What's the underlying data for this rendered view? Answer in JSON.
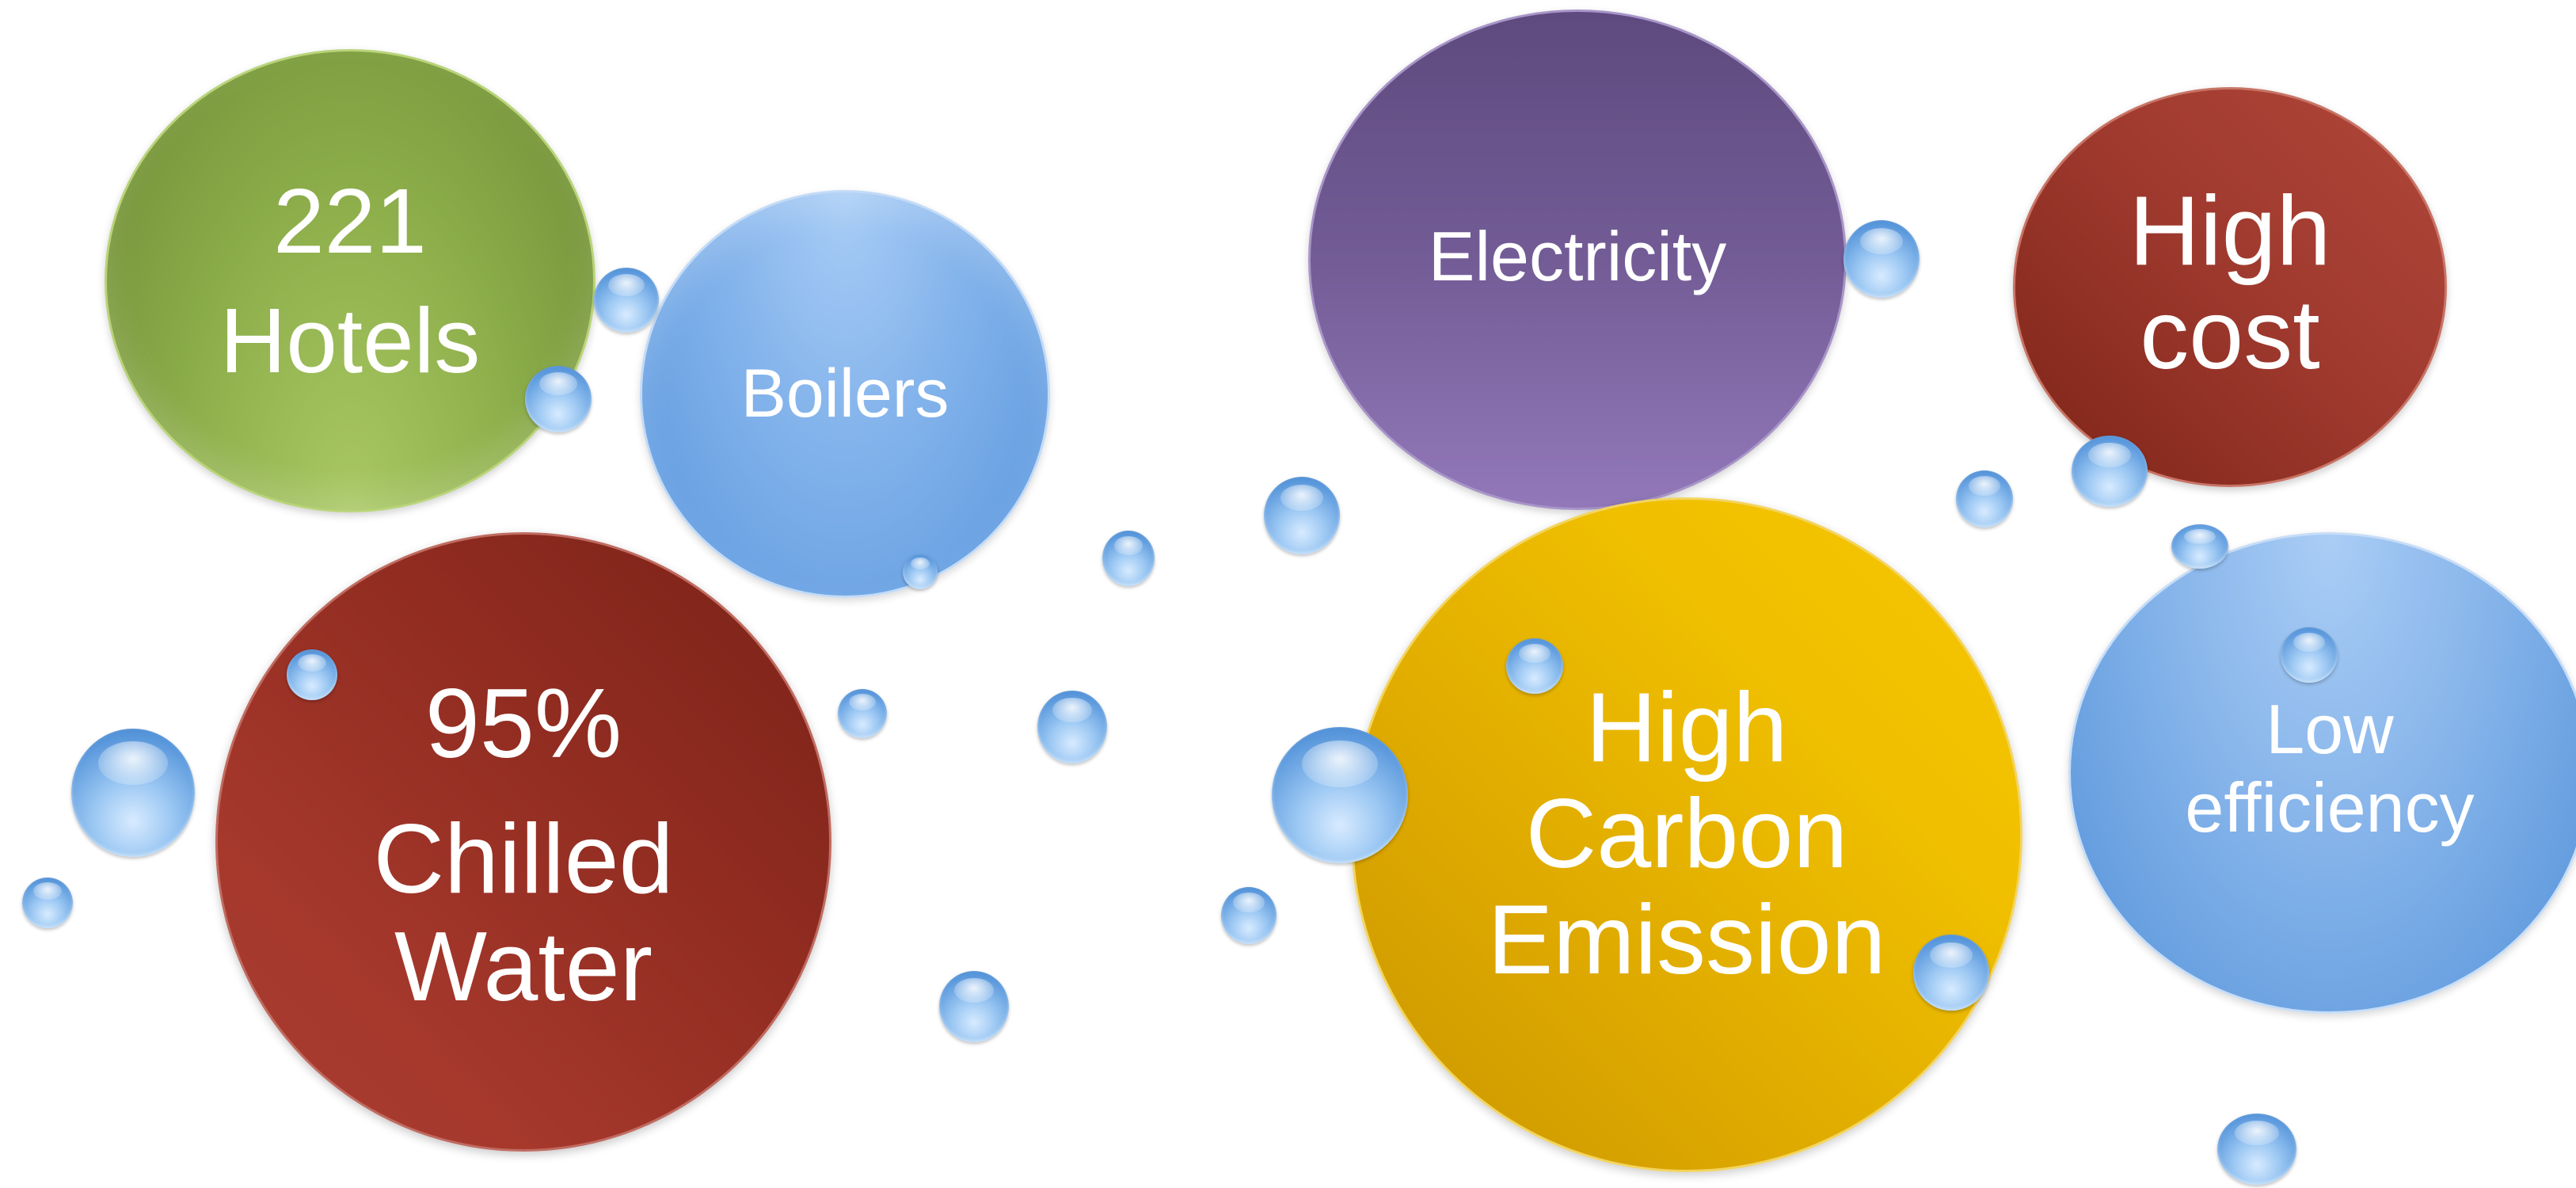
{
  "diagram": {
    "bubbles": [
      {
        "id": "hotels",
        "lines": [
          "221",
          "Hotels"
        ],
        "color": "#8fb04c"
      },
      {
        "id": "boilers",
        "lines": [
          "Boilers"
        ],
        "color": "#86b5ec"
      },
      {
        "id": "chilled",
        "lines": [
          "95%",
          "Chilled",
          "Water"
        ],
        "color": "#8f2b20"
      },
      {
        "id": "electricity",
        "lines": [
          "Electricity"
        ],
        "color": "#735c96"
      },
      {
        "id": "highcost",
        "lines": [
          "High",
          "cost"
        ],
        "color": "#a03a2f"
      },
      {
        "id": "carbon",
        "lines": [
          "High",
          "Carbon",
          "Emission"
        ],
        "color": "#f0c000"
      },
      {
        "id": "lowefficiency",
        "lines": [
          "Low",
          "efficiency"
        ],
        "color": "#86b4ea"
      }
    ],
    "droplet_color": "#5a98dc"
  }
}
